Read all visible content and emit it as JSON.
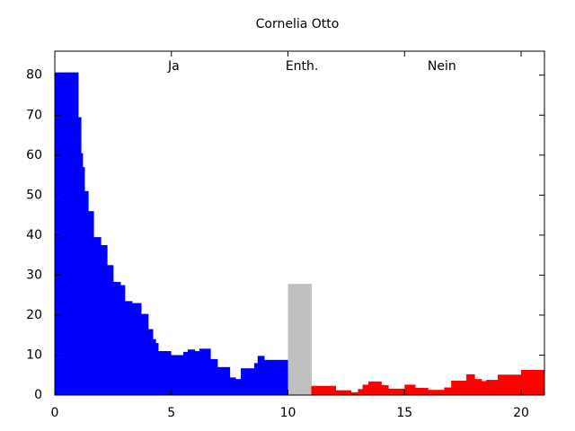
{
  "chart_data": {
    "type": "histogram",
    "title": "Cornelia Otto",
    "xlim": [
      0,
      21
    ],
    "ylim": [
      0,
      86
    ],
    "xticks": [
      0,
      5,
      10,
      15,
      20
    ],
    "yticks": [
      0,
      10,
      20,
      30,
      40,
      50,
      60,
      70,
      80
    ],
    "annotations": [
      {
        "text": "Ja",
        "x": 5.1,
        "y": 82.2
      },
      {
        "text": "Enth.",
        "x": 10.6,
        "y": 82.2
      },
      {
        "text": "Nein",
        "x": 16.6,
        "y": 82.2
      }
    ],
    "series": [
      {
        "color": "#0000ff",
        "bins": [
          0,
          1.0,
          1.12,
          1.19,
          1.27,
          1.43,
          1.66,
          1.97,
          2.24,
          2.5,
          2.81,
          3.0,
          3.31,
          3.7,
          4.0,
          4.2,
          4.32,
          4.43,
          4.97,
          5.51,
          5.7,
          6.0,
          6.2,
          6.67,
          6.97,
          7.5,
          7.75,
          7.98,
          8.55,
          8.7,
          8.98,
          10
        ],
        "values": [
          80.7,
          69.5,
          60.5,
          57,
          51,
          46,
          39.5,
          37.5,
          32.5,
          28.3,
          27.5,
          23.5,
          23,
          20.3,
          16.5,
          14,
          13,
          11,
          10,
          10.8,
          11.4,
          11,
          11.6,
          9,
          7,
          4.4,
          4,
          6.7,
          8,
          9.8,
          8.8
        ]
      },
      {
        "color": "#c0c0c0",
        "bins": [
          10,
          11
        ],
        "values": [
          27.8
        ]
      },
      {
        "color": "#ff0000",
        "bins": [
          11,
          12.04,
          12.7,
          13.0,
          13.2,
          13.45,
          14.0,
          14.3,
          15.0,
          15.45,
          16.0,
          16.7,
          17.0,
          17.65,
          18.0,
          18.3,
          18.5,
          19.0,
          20.0,
          21
        ],
        "values": [
          2.3,
          1.2,
          0.7,
          1.5,
          2.6,
          3.4,
          2.5,
          1.6,
          2.6,
          1.8,
          1.3,
          1.9,
          3.6,
          5.2,
          4,
          3.5,
          3.8,
          5.1,
          6.3
        ]
      }
    ]
  }
}
